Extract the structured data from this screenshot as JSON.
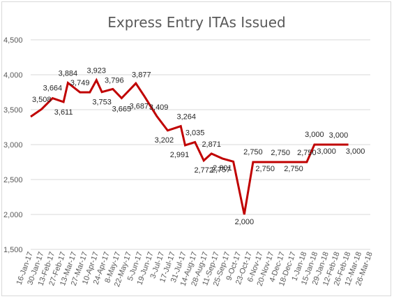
{
  "chart_data": {
    "type": "line",
    "title": "Express Entry ITAs Issued",
    "xlabel": "",
    "ylabel": "",
    "ylim": [
      1500,
      4500
    ],
    "yticks": [
      1500,
      2000,
      2500,
      3000,
      3500,
      4000,
      4500
    ],
    "ytick_labels": [
      "1,500",
      "2,000",
      "2,500",
      "3,000",
      "3,500",
      "4,000",
      "4,500"
    ],
    "grid": true,
    "legend": "none",
    "colors": {
      "series": "#c00000",
      "grid": "#d9d9d9",
      "text": "#595959"
    },
    "x_tick_labels": [
      "16-Jan-17",
      "30-Jan-17",
      "13-Feb-17",
      "27-Feb-17",
      "13-Mar-17",
      "27-Mar-17",
      "10-Apr-17",
      "24-Apr-17",
      "8-May-17",
      "22-May-17",
      "5-Jun-17",
      "19-Jun-17",
      "3-Jul-17",
      "17-Jul-17",
      "31-Jul-17",
      "14-Aug-17",
      "28-Aug-17",
      "11-Sep-17",
      "25-Sep-17",
      "9-Oct-17",
      "23-Oct-17",
      "6-Nov-17",
      "20-Nov-17",
      "4-Dec-17",
      "18-Dec-17",
      "1-Jan-18",
      "15-Jan-18",
      "29-Jan-18",
      "12-Feb-18",
      "26-Feb-18",
      "12-Mar-18",
      "26-Mar-18"
    ],
    "points": [
      {
        "x": 0,
        "y": 3400,
        "label": ""
      },
      {
        "x": 1,
        "y": 3508,
        "label": "3,508"
      },
      {
        "x": 2,
        "y": 3664,
        "label": "3,664"
      },
      {
        "x": 3,
        "y": 3611,
        "label": "3,611"
      },
      {
        "x": 3.4,
        "y": 3884,
        "label": "3,884"
      },
      {
        "x": 4.5,
        "y": 3749,
        "label": "3,749"
      },
      {
        "x": 5.4,
        "y": 3749,
        "label": ""
      },
      {
        "x": 6,
        "y": 3923,
        "label": "3,923"
      },
      {
        "x": 6.5,
        "y": 3753,
        "label": "3,753"
      },
      {
        "x": 7.5,
        "y": 3796,
        "label": "3,796"
      },
      {
        "x": 8.3,
        "y": 3665,
        "label": "3,665"
      },
      {
        "x": 9.6,
        "y": 3877,
        "label": "3,877"
      },
      {
        "x": 10.4,
        "y": 3687,
        "label": "3,687"
      },
      {
        "x": 11.5,
        "y": 3409,
        "label": "3,409"
      },
      {
        "x": 12.5,
        "y": 3202,
        "label": "3,202"
      },
      {
        "x": 13.7,
        "y": 3264,
        "label": "3,264"
      },
      {
        "x": 14.1,
        "y": 2991,
        "label": "2,991"
      },
      {
        "x": 15,
        "y": 3035,
        "label": "3,035"
      },
      {
        "x": 15.8,
        "y": 2772,
        "label": "2,772"
      },
      {
        "x": 16.5,
        "y": 2871,
        "label": "2,871"
      },
      {
        "x": 17.5,
        "y": 2801,
        "label": "2,801"
      },
      {
        "x": 18.5,
        "y": 2757,
        "label": "2,757"
      },
      {
        "x": 19.5,
        "y": 2000,
        "label": "2,000"
      },
      {
        "x": 20.3,
        "y": 2750,
        "label": "2,750"
      },
      {
        "x": 21.4,
        "y": 2750,
        "label": "2,750"
      },
      {
        "x": 22.8,
        "y": 2750,
        "label": "2,750"
      },
      {
        "x": 24,
        "y": 2750,
        "label": "2,750"
      },
      {
        "x": 25.2,
        "y": 2750,
        "label": "2,750"
      },
      {
        "x": 25.9,
        "y": 3000,
        "label": "3,000"
      },
      {
        "x": 27,
        "y": 3000,
        "label": "3,000"
      },
      {
        "x": 28.1,
        "y": 3000,
        "label": "3,000"
      },
      {
        "x": 29,
        "y": 3000,
        "label": "3,000"
      }
    ]
  }
}
